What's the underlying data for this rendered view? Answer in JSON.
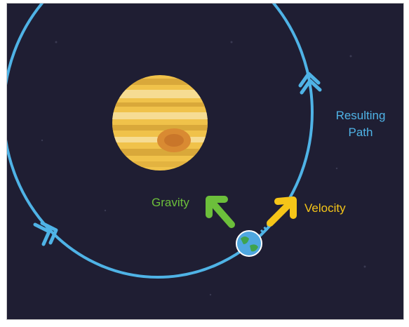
{
  "labels": {
    "gravity": "Gravity",
    "velocity": "Velocity",
    "path": [
      "Resulting",
      "Path"
    ]
  }
}
